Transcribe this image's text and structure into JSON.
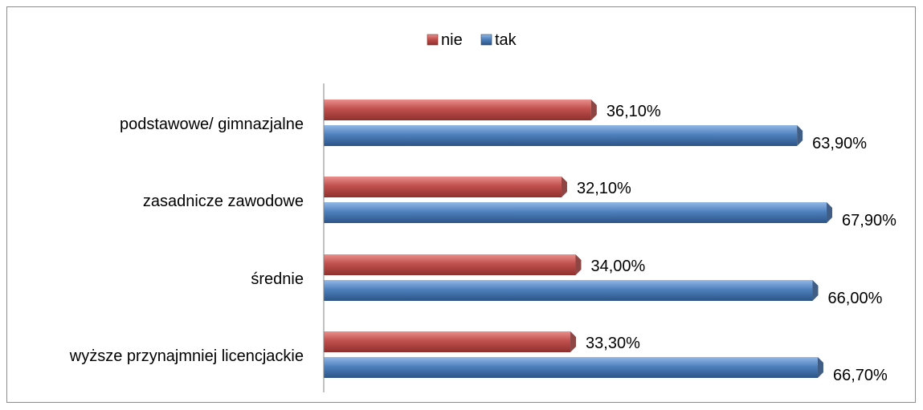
{
  "chart_data": {
    "type": "bar",
    "orientation": "horizontal",
    "categories": [
      "podstawowe/ gimnazjalne",
      "zasadnicze zawodowe",
      "średnie",
      "wyższe przynajmniej licencjackie"
    ],
    "series": [
      {
        "name": "nie",
        "values": [
          36.1,
          32.1,
          34.0,
          33.3
        ],
        "labels": [
          "36,10%",
          "32,10%",
          "34,00%",
          "33,30%"
        ],
        "color": "#c0504d"
      },
      {
        "name": "tak",
        "values": [
          63.9,
          67.9,
          66.0,
          66.7
        ],
        "labels": [
          "63,90%",
          "67,90%",
          "66,00%",
          "66,70%"
        ],
        "color": "#4f81bd"
      }
    ],
    "xlim": [
      0,
      100
    ],
    "grid": false,
    "legend": "top-center",
    "title": "",
    "xlabel": "",
    "ylabel": ""
  }
}
